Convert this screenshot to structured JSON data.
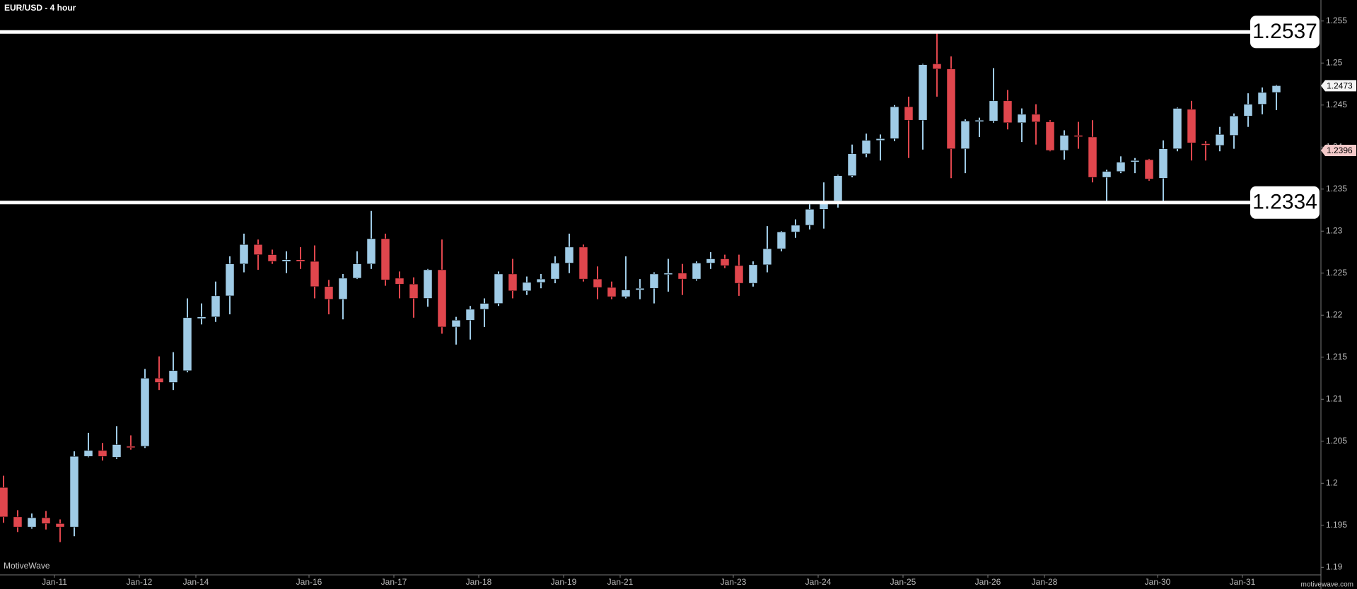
{
  "chart_data": {
    "type": "candlestick",
    "title": "EUR/USD - 4 hour",
    "watermark": "MotiveWave",
    "footer": "motivewave.com",
    "categories": [
      null,
      null,
      null,
      null,
      "Jan-11",
      null,
      null,
      null,
      null,
      null,
      "Jan-12",
      null,
      null,
      null,
      "Jan-14",
      null,
      null,
      null,
      null,
      null,
      null,
      null,
      "Jan-16",
      null,
      null,
      null,
      null,
      null,
      "Jan-17",
      null,
      null,
      null,
      null,
      null,
      "Jan-18",
      null,
      null,
      null,
      null,
      null,
      "Jan-19",
      null,
      null,
      null,
      "Jan-21",
      null,
      null,
      null,
      null,
      null,
      null,
      null,
      "Jan-23",
      null,
      null,
      null,
      null,
      null,
      "Jan-24",
      null,
      null,
      null,
      null,
      null,
      "Jan-25",
      null,
      null,
      null,
      null,
      null,
      "Jan-26",
      null,
      null,
      null,
      "Jan-28",
      null,
      null,
      null,
      null,
      null,
      null,
      null,
      "Jan-30",
      null,
      null,
      null,
      null,
      null,
      "Jan-31",
      null,
      null
    ],
    "open": [
      1.1995,
      1.196,
      1.1948,
      1.1959,
      1.1952,
      1.1948,
      1.2032,
      1.2039,
      1.2031,
      1.2044,
      1.2044,
      1.2125,
      1.212,
      1.2134,
      1.2196,
      1.2198,
      1.2223,
      1.2261,
      1.2284,
      1.2272,
      1.2264,
      1.2266,
      1.2264,
      1.2234,
      1.2219,
      1.2244,
      1.2261,
      1.2291,
      1.2244,
      1.2237,
      1.222,
      1.2254,
      1.2186,
      1.2194,
      1.2207,
      1.2214,
      1.2249,
      1.2229,
      1.2239,
      1.2243,
      1.2262,
      1.2281,
      1.2243,
      1.2233,
      1.2222,
      1.223,
      1.2232,
      1.2249,
      1.225,
      1.2243,
      1.2262,
      1.2267,
      1.2259,
      1.2238,
      1.226,
      1.2279,
      1.2299,
      1.2307,
      1.2326,
      1.2336,
      1.2366,
      1.2392,
      1.2408,
      1.241,
      1.2448,
      1.2432,
      1.2499,
      1.2493,
      1.2398,
      1.2431,
      1.2431,
      1.2455,
      1.2429,
      1.2439,
      1.243,
      1.2396,
      1.2414,
      1.2412,
      1.2364,
      1.2371,
      1.2383,
      1.2385,
      1.2363,
      1.2398,
      1.2445,
      1.2404,
      1.2402,
      1.2414,
      1.2437,
      1.2451,
      1.2465
    ],
    "high": [
      1.2009,
      1.1968,
      1.1964,
      1.1967,
      1.1957,
      1.2038,
      1.206,
      1.2048,
      1.2068,
      1.2057,
      1.2136,
      1.2151,
      1.2156,
      1.222,
      1.2214,
      1.224,
      1.227,
      1.2297,
      1.229,
      1.2278,
      1.2276,
      1.2281,
      1.2283,
      1.2242,
      1.2249,
      1.2276,
      1.2324,
      1.2297,
      1.2252,
      1.2245,
      1.2255,
      1.229,
      1.2198,
      1.2211,
      1.222,
      1.2252,
      1.2267,
      1.2246,
      1.2249,
      1.227,
      1.2297,
      1.2284,
      1.2258,
      1.224,
      1.227,
      1.2243,
      1.2251,
      1.2267,
      1.2261,
      1.2264,
      1.2275,
      1.2272,
      1.2272,
      1.2264,
      1.2306,
      1.23,
      1.2314,
      1.2332,
      1.2358,
      1.2367,
      1.2403,
      1.2416,
      1.2415,
      1.245,
      1.246,
      1.2499,
      1.2537,
      1.2508,
      1.2433,
      1.2435,
      1.2494,
      1.2468,
      1.2446,
      1.2451,
      1.2432,
      1.242,
      1.243,
      1.2432,
      1.2373,
      1.2389,
      1.2387,
      1.2386,
      1.2408,
      1.2447,
      1.2455,
      1.2407,
      1.2424,
      1.244,
      1.2464,
      1.2471,
      1.2474
    ],
    "low": [
      1.1953,
      1.1942,
      1.1946,
      1.1945,
      1.193,
      1.1937,
      1.2031,
      1.2027,
      1.2029,
      1.204,
      1.2042,
      1.2111,
      1.2111,
      1.2132,
      1.2189,
      1.2192,
      1.2201,
      1.2251,
      1.2254,
      1.2261,
      1.225,
      1.2255,
      1.222,
      1.2201,
      1.2195,
      1.2243,
      1.2255,
      1.2235,
      1.222,
      1.2197,
      1.221,
      1.2178,
      1.2165,
      1.2171,
      1.2186,
      1.2211,
      1.222,
      1.2224,
      1.2232,
      1.2238,
      1.225,
      1.224,
      1.2219,
      1.2219,
      1.222,
      1.2219,
      1.2214,
      1.2228,
      1.2224,
      1.2241,
      1.2255,
      1.2256,
      1.2223,
      1.2234,
      1.2251,
      1.2276,
      1.2292,
      1.2302,
      1.2303,
      1.2328,
      1.2364,
      1.2388,
      1.2384,
      1.2407,
      1.2387,
      1.2397,
      1.246,
      1.2363,
      1.2369,
      1.2412,
      1.2429,
      1.2421,
      1.2406,
      1.2403,
      1.2395,
      1.2385,
      1.2398,
      1.2358,
      1.2334,
      1.2369,
      1.2369,
      1.236,
      1.2334,
      1.2395,
      1.2384,
      1.2384,
      1.2395,
      1.2398,
      1.2424,
      1.2439,
      1.2444
    ],
    "close": [
      1.196,
      1.1948,
      1.1959,
      1.1952,
      1.1948,
      1.2032,
      1.2039,
      1.2032,
      1.2046,
      1.2043,
      1.2125,
      1.212,
      1.2134,
      1.2197,
      1.2198,
      1.2223,
      1.2261,
      1.2284,
      1.2272,
      1.2264,
      1.2266,
      1.2264,
      1.2234,
      1.2219,
      1.2244,
      1.2261,
      1.2291,
      1.2242,
      1.2237,
      1.222,
      1.2254,
      1.2186,
      1.2194,
      1.2207,
      1.2214,
      1.2249,
      1.2229,
      1.2239,
      1.2243,
      1.2262,
      1.2281,
      1.2243,
      1.2233,
      1.2222,
      1.223,
      1.2232,
      1.2249,
      1.225,
      1.2243,
      1.2262,
      1.2267,
      1.2259,
      1.2238,
      1.226,
      1.2279,
      1.2299,
      1.2307,
      1.2326,
      1.2336,
      1.2366,
      1.2392,
      1.2408,
      1.241,
      1.2448,
      1.2432,
      1.2498,
      1.2493,
      1.2398,
      1.2431,
      1.2432,
      1.2455,
      1.2429,
      1.2439,
      1.243,
      1.2396,
      1.2414,
      1.2413,
      1.2364,
      1.2371,
      1.2382,
      1.2384,
      1.2362,
      1.2398,
      1.2446,
      1.2405,
      1.2403,
      1.2415,
      1.2437,
      1.2451,
      1.2465,
      1.2473
    ],
    "up_color": "#9fcbe6",
    "down_color": "#e0464d",
    "levels": [
      1.2537,
      1.2334
    ],
    "last_price": 1.2473,
    "marker_price": 1.2396,
    "ylim": [
      1.1891,
      1.2575
    ],
    "yticks": [
      1.19,
      1.195,
      1.2,
      1.205,
      1.21,
      1.215,
      1.22,
      1.225,
      1.23,
      1.235,
      1.24,
      1.245,
      1.25,
      1.255
    ]
  }
}
